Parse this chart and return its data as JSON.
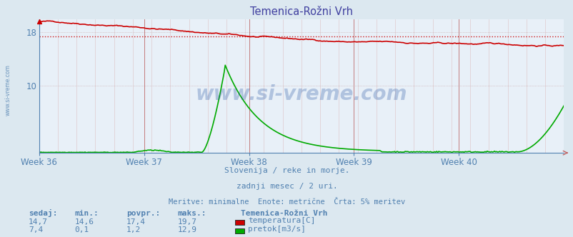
{
  "title": "Temenica-Rožni Vrh",
  "bg_color": "#dce8f0",
  "plot_bg_color": "#e8f0f8",
  "title_color": "#4040a0",
  "axis_color": "#5080b0",
  "text_color": "#5080b0",
  "weeks": [
    "Week 36",
    "Week 37",
    "Week 38",
    "Week 39",
    "Week 40"
  ],
  "ylim": [
    0,
    20
  ],
  "yticks": [
    10,
    18
  ],
  "avg_line_y": 17.4,
  "avg_line_color": "#cc0000",
  "temp_color": "#cc0000",
  "flow_color": "#00aa00",
  "subtitle1": "Slovenija / reke in morje.",
  "subtitle2": "zadnji mesec / 2 uri.",
  "subtitle3": "Meritve: minimalne  Enote: metrične  Črta: 5% meritev",
  "legend_title": "Temenica-Rožni Vrh",
  "legend_items": [
    {
      "label": "temperatura[C]",
      "color": "#cc0000"
    },
    {
      "label": "pretok[m3/s]",
      "color": "#00aa00"
    }
  ],
  "stats_headers": [
    "sedaj:",
    "min.:",
    "povpr.:",
    "maks.:"
  ],
  "stats_temp": [
    "14,7",
    "14,6",
    "17,4",
    "19,7"
  ],
  "stats_flow": [
    "7,4",
    "0,1",
    "1,2",
    "12,9"
  ],
  "watermark": "www.si-vreme.com",
  "watermark_color": "#2050a0",
  "side_label": "www.si-vreme.com",
  "n_points": 500
}
